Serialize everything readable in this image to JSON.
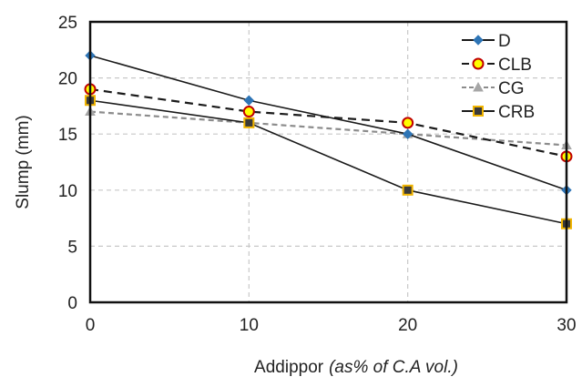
{
  "chart_data": {
    "type": "line",
    "title": "",
    "xlabel": "Addippor",
    "xlabel_italic_suffix": "(as% of C.A vol.)",
    "ylabel": "Slump (mm)",
    "x": [
      0,
      10,
      20,
      30
    ],
    "xlim": [
      0,
      30
    ],
    "ylim": [
      0,
      25
    ],
    "xticks": [
      "0",
      "10",
      "20",
      "30"
    ],
    "yticks": [
      "0",
      "5",
      "10",
      "15",
      "20",
      "25"
    ],
    "grid": "dashed gray, both axes",
    "legend_position": "top-right",
    "series": [
      {
        "name": "D",
        "values": [
          22,
          18,
          15,
          10
        ],
        "line_color": "#1a1a1a",
        "line_style": "solid",
        "marker": "diamond",
        "marker_fill": "#2e75b6",
        "marker_edge": "#2e75b6"
      },
      {
        "name": "CLB",
        "values": [
          19,
          17,
          16,
          13
        ],
        "line_color": "#1a1a1a",
        "line_style": "dashed",
        "marker": "circle",
        "marker_fill": "#ffff00",
        "marker_edge": "#c00000"
      },
      {
        "name": "CG",
        "values": [
          17,
          16,
          15,
          14
        ],
        "line_color": "#8c8c8c",
        "line_style": "dashed",
        "marker": "triangle",
        "marker_fill": "#a6a6a6",
        "marker_edge": "#a6a6a6"
      },
      {
        "name": "CRB",
        "values": [
          18,
          16,
          10,
          7
        ],
        "line_color": "#1a1a1a",
        "line_style": "solid",
        "marker": "square",
        "marker_fill": "#3a3a3a",
        "marker_edge": "#f0b400"
      }
    ]
  }
}
